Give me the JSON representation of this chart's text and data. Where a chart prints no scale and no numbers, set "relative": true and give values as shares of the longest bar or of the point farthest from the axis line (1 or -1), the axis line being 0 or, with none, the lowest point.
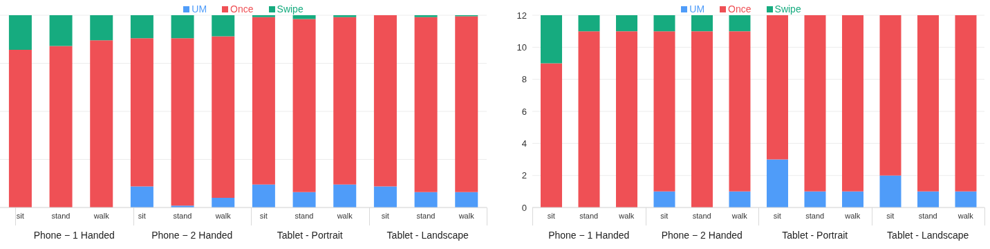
{
  "chart_data": [
    {
      "type": "bar",
      "stacked": true,
      "legend": "top",
      "grid": "y",
      "categories": [
        "sit",
        "stand",
        "walk",
        "sit",
        "stand",
        "walk",
        "sit",
        "stand",
        "walk",
        "sit",
        "stand",
        "walk"
      ],
      "annotations": [
        "Phone − 1 Handed",
        "Phone − 2 Handed",
        "Tablet - Portrait",
        "Tablet - Landscape"
      ],
      "relative": true,
      "series": [
        {
          "name": "UM",
          "color": "#4f9cf9",
          "values": [
            0,
            0,
            0,
            0.11,
            0.01,
            0.05,
            0.12,
            0.08,
            0.12,
            0.11,
            0.08,
            0.08
          ]
        },
        {
          "name": "Once",
          "color": "#ef5055",
          "values": [
            0.82,
            0.84,
            0.87,
            0.77,
            0.87,
            0.84,
            0.87,
            0.9,
            0.87,
            0.89,
            0.91,
            0.915
          ]
        },
        {
          "name": "Swipe",
          "color": "#16ab7f",
          "values": [
            0.18,
            0.16,
            0.13,
            0.12,
            0.12,
            0.11,
            0.01,
            0.02,
            0.01,
            0,
            0.01,
            0.005
          ]
        }
      ]
    },
    {
      "type": "bar",
      "stacked": true,
      "legend": "top",
      "grid": "y",
      "categories": [
        "sit",
        "stand",
        "walk",
        "sit",
        "stand",
        "walk",
        "sit",
        "stand",
        "walk",
        "sit",
        "stand",
        "walk"
      ],
      "annotations": [
        "Phone − 1 Handed",
        "Phone − 2 Handed",
        "Tablet - Portrait",
        "Tablet - Landscape"
      ],
      "ylim": [
        0,
        12
      ],
      "yticks": [
        0,
        2,
        4,
        6,
        8,
        10,
        12
      ],
      "series": [
        {
          "name": "UM",
          "color": "#4f9cf9",
          "values": [
            0,
            0,
            0,
            1,
            0,
            1,
            3,
            1,
            1,
            2,
            1,
            1
          ]
        },
        {
          "name": "Once",
          "color": "#ef5055",
          "values": [
            9,
            11,
            11,
            10,
            11,
            10,
            9,
            11,
            11,
            10,
            11,
            11
          ]
        },
        {
          "name": "Swipe",
          "color": "#16ab7f",
          "values": [
            3,
            1,
            1,
            1,
            1,
            1,
            0,
            0,
            0,
            0,
            0,
            0
          ]
        }
      ]
    }
  ]
}
